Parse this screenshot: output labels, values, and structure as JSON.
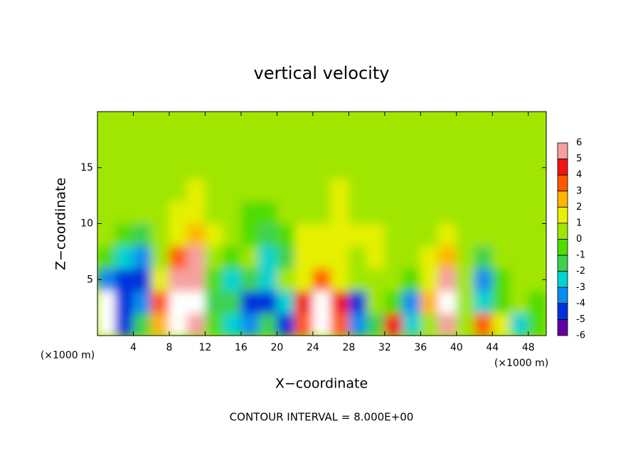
{
  "chart_data": {
    "type": "heatmap",
    "title": "vertical velocity",
    "x_label": "X−coordinate",
    "y_label": "Z−coordinate",
    "x_unit_labels": [
      "(×1000 m)",
      "(×1000 m)"
    ],
    "footer": "CONTOUR INTERVAL = 8.000E+00",
    "xlim": [
      0,
      50
    ],
    "ylim": [
      0,
      20
    ],
    "xticks": [
      4,
      8,
      12,
      16,
      20,
      24,
      28,
      32,
      36,
      40,
      44,
      48
    ],
    "yticks": [
      5,
      10,
      15
    ],
    "x": [
      1,
      3,
      5,
      7,
      9,
      11,
      13,
      15,
      17,
      19,
      21,
      23,
      25,
      27,
      29,
      31,
      33,
      35,
      37,
      39,
      41,
      43,
      45,
      47,
      49
    ],
    "y": [
      1,
      3,
      5,
      7,
      9,
      11,
      13,
      15,
      17,
      19
    ],
    "z": [
      [
        7,
        -5,
        -2,
        2,
        7,
        6,
        -1,
        -3,
        -4,
        -2,
        -5,
        3,
        7,
        3,
        -4,
        -2,
        4,
        -3,
        0,
        5,
        0,
        3,
        1,
        -3,
        -1
      ],
      [
        8,
        -5,
        -4,
        3,
        8,
        7,
        -2,
        -2,
        -5,
        -5,
        -3,
        4,
        9,
        4,
        -5,
        0,
        -1,
        -4,
        2,
        8,
        0,
        -3,
        -1,
        0,
        -1
      ],
      [
        -4,
        -5,
        -5,
        1,
        6,
        5,
        -1,
        -3,
        -2,
        -3,
        0,
        1,
        3,
        1,
        0,
        0,
        0,
        -1,
        1,
        6,
        0,
        -4,
        -1,
        0,
        0
      ],
      [
        -1,
        -3,
        -4,
        0,
        3,
        5,
        0,
        -1,
        0,
        -3,
        -2,
        1,
        1,
        1,
        0,
        1,
        0,
        0,
        1,
        2,
        0,
        -2,
        0,
        0,
        0
      ],
      [
        0,
        -1,
        -2,
        0,
        1,
        2,
        1,
        0,
        -1,
        -2,
        -1,
        1,
        1,
        1,
        1,
        1,
        0,
        0,
        0,
        1,
        0,
        0,
        0,
        0,
        0
      ],
      [
        0,
        0,
        0,
        0,
        1,
        1,
        0,
        0,
        -1,
        -1,
        0,
        0,
        0,
        1,
        0,
        0,
        0,
        0,
        0,
        0,
        0,
        0,
        0,
        0,
        0
      ],
      [
        0,
        0,
        0,
        0,
        0,
        1,
        0,
        0,
        0,
        0,
        0,
        0,
        0,
        1,
        0,
        0,
        0,
        0,
        0,
        0,
        0,
        0,
        0,
        0,
        0
      ],
      [
        0,
        0,
        0,
        0,
        0,
        0,
        0,
        0,
        0,
        0,
        0,
        0,
        0,
        0,
        0,
        0,
        0,
        0,
        0,
        0,
        0,
        0,
        0,
        0,
        0
      ],
      [
        0,
        0,
        0,
        0,
        0,
        0,
        0,
        0,
        0,
        0,
        0,
        0,
        0,
        0,
        0,
        0,
        0,
        0,
        0,
        0,
        0,
        0,
        0,
        0,
        0
      ],
      [
        0,
        0,
        0,
        0,
        0,
        0,
        0,
        0,
        0,
        0,
        0,
        0,
        0,
        0,
        0,
        0,
        0,
        0,
        0,
        0,
        0,
        0,
        0,
        0,
        0
      ]
    ],
    "colorbar_ticks": [
      6,
      5,
      4,
      3,
      2,
      1,
      0,
      -1,
      -2,
      -3,
      -4,
      -5,
      -6
    ],
    "colors": [
      "#f5a0a0",
      "#f01414",
      "#ff5a00",
      "#ffb400",
      "#e6f000",
      "#a0e600",
      "#50dc00",
      "#3cd250",
      "#00d2d2",
      "#0a8cf0",
      "#0032dc",
      "#6400a0"
    ],
    "over_color": "#ffffff"
  }
}
